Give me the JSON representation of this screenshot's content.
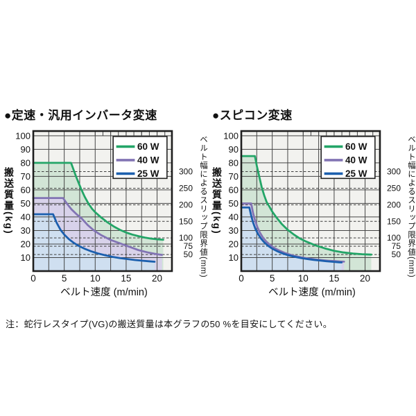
{
  "note": "注：蛇行レスタイプ(VG)の搬送質量は本グラフの50 %を目安にしてください。",
  "style": {
    "plot_bg": "#f2f2ef",
    "grid_color": "#454545",
    "dash_color": "#3d3d3d",
    "border_color": "#1e1e1e",
    "legend_bg": "#ffffff",
    "legend_border": "#222222"
  },
  "chart_data": [
    {
      "type": "area",
      "title": "●定速・汎用インバータ変速",
      "xlabel": "ベルト速度 (m/min)",
      "ylabel": "搬送質量(kg)",
      "y2label": "ベルト幅によるスリップ限界値(mm)",
      "xlim": [
        0,
        22.4
      ],
      "ylim": [
        0,
        103.5
      ],
      "x_grid_step": 2.5,
      "x_minor_tick_step": 1.25,
      "x_minor_tick_start": 10,
      "x_ticks": [
        0,
        5,
        10,
        15,
        20
      ],
      "y_ticks": [
        10,
        20,
        30,
        40,
        50,
        60,
        70,
        80,
        90,
        100
      ],
      "y2_ticks": [
        {
          "label": "300",
          "kg": 73.5
        },
        {
          "label": "250",
          "kg": 61.25
        },
        {
          "label": "200",
          "kg": 49
        },
        {
          "label": "150",
          "kg": 36.75
        },
        {
          "label": "100",
          "kg": 24.5
        },
        {
          "label": "75",
          "kg": 18.4
        },
        {
          "label": "50",
          "kg": 12.25
        }
      ],
      "legend": {
        "x0": 12.9,
        "x1": 21.6,
        "top_kg": 99.5,
        "row_step_kg": 10,
        "swatch_len": 3.0
      },
      "series": [
        {
          "name": "60 W",
          "color": "#23a567",
          "fill": "#d2e5d6",
          "points": [
            [
              0,
              80
            ],
            [
              6.1,
              80
            ],
            [
              6.5,
              75
            ],
            [
              6.9,
              70
            ],
            [
              7.3,
              65.5
            ],
            [
              7.7,
              61
            ],
            [
              8.3,
              55
            ],
            [
              8.9,
              50
            ],
            [
              9.5,
              46
            ],
            [
              10,
              43.5
            ],
            [
              11,
              39.5
            ],
            [
              12,
              36
            ],
            [
              13,
              33
            ],
            [
              14,
              30.5
            ],
            [
              15,
              28.5
            ],
            [
              16,
              27
            ],
            [
              17,
              25.8
            ],
            [
              18,
              24.8
            ],
            [
              19,
              24
            ],
            [
              20,
              23.5
            ],
            [
              21,
              23.2
            ]
          ]
        },
        {
          "name": "40 W",
          "color": "#8274b4",
          "fill": "#d8d2ea",
          "points": [
            [
              0,
              54
            ],
            [
              4.8,
              54
            ],
            [
              5.5,
              49.5
            ],
            [
              6.2,
              45.5
            ],
            [
              7,
              42
            ],
            [
              7.8,
              39
            ],
            [
              8.8,
              34
            ],
            [
              9.8,
              30
            ],
            [
              11,
              26.5
            ],
            [
              12.5,
              23
            ],
            [
              14,
              20.5
            ],
            [
              15.5,
              18
            ],
            [
              17,
              15.5
            ],
            [
              18.5,
              13.8
            ],
            [
              20,
              12.5
            ],
            [
              20.8,
              12
            ]
          ]
        },
        {
          "name": "25 W",
          "color": "#1b5fae",
          "fill": "#cfdff0",
          "points": [
            [
              0,
              42
            ],
            [
              3.2,
              42
            ],
            [
              3.8,
              35.5
            ],
            [
              4.4,
              30.5
            ],
            [
              5,
              27
            ],
            [
              5.7,
              23.8
            ],
            [
              6.5,
              21
            ],
            [
              7.4,
              18.5
            ],
            [
              8.3,
              16.5
            ],
            [
              9.3,
              14.7
            ],
            [
              10.4,
              13.1
            ],
            [
              11.6,
              11.7
            ],
            [
              12.8,
              10.5
            ],
            [
              14,
              9.6
            ],
            [
              15.2,
              8.9
            ],
            [
              16.4,
              8.2
            ],
            [
              17.6,
              7.7
            ],
            [
              18.8,
              7.2
            ],
            [
              19.6,
              6.9
            ]
          ]
        }
      ]
    },
    {
      "type": "area",
      "title": "●スピコン変速",
      "xlabel": "ベルト速度 (m/min)",
      "ylabel": "搬送質量(kg)",
      "y2label": "ベルト幅によるスリップ限界値(mm)",
      "xlim": [
        0,
        22.4
      ],
      "ylim": [
        0,
        103.5
      ],
      "x_grid_step": 2.5,
      "x_minor_tick_step": 1.25,
      "x_minor_tick_start": 10,
      "x_ticks": [
        0,
        5,
        10,
        15,
        20
      ],
      "y_ticks": [
        10,
        20,
        30,
        40,
        50,
        60,
        70,
        80,
        90,
        100
      ],
      "y2_ticks": [
        {
          "label": "300",
          "kg": 73.5
        },
        {
          "label": "250",
          "kg": 61.25
        },
        {
          "label": "200",
          "kg": 49
        },
        {
          "label": "150",
          "kg": 36.75
        },
        {
          "label": "100",
          "kg": 24.5
        },
        {
          "label": "75",
          "kg": 18.4
        },
        {
          "label": "50",
          "kg": 12.25
        }
      ],
      "legend": {
        "x0": 12.9,
        "x1": 21.6,
        "top_kg": 99.5,
        "row_step_kg": 10,
        "swatch_len": 3.0
      },
      "series": [
        {
          "name": "60 W",
          "color": "#23a567",
          "fill": "#d2e5d6",
          "points": [
            [
              0,
              85
            ],
            [
              2.2,
              85
            ],
            [
              2.5,
              78
            ],
            [
              2.9,
              70
            ],
            [
              3.3,
              62
            ],
            [
              3.7,
              56
            ],
            [
              4.1,
              51
            ],
            [
              4.5,
              48
            ],
            [
              5,
              44
            ],
            [
              5.7,
              39.5
            ],
            [
              6.5,
              35
            ],
            [
              7.5,
              30.5
            ],
            [
              8.5,
              27
            ],
            [
              9.5,
              24
            ],
            [
              10.5,
              21.8
            ],
            [
              12,
              19
            ],
            [
              13.5,
              16.8
            ],
            [
              15,
              15
            ],
            [
              16.5,
              13.8
            ],
            [
              18,
              13
            ],
            [
              19.5,
              12.5
            ],
            [
              21,
              12.2
            ]
          ]
        },
        {
          "name": "40 W",
          "color": "#8274b4",
          "fill": "#d8d2ea",
          "points": [
            [
              0,
              50
            ],
            [
              1.6,
              50
            ],
            [
              1.9,
              43
            ],
            [
              2.2,
              38
            ],
            [
              2.6,
              32.5
            ],
            [
              3,
              28.5
            ],
            [
              3.5,
              24.8
            ],
            [
              4,
              22
            ],
            [
              4.6,
              19.5
            ],
            [
              5.3,
              17.2
            ],
            [
              6,
              15.5
            ],
            [
              7,
              13.5
            ],
            [
              8,
              12
            ],
            [
              9,
              10.8
            ],
            [
              10,
              9.9
            ],
            [
              11,
              9.2
            ],
            [
              12,
              8.6
            ],
            [
              13,
              8.1
            ],
            [
              14,
              7.7
            ],
            [
              15,
              7.4
            ],
            [
              16,
              7.1
            ],
            [
              16.6,
              7
            ]
          ]
        },
        {
          "name": "25 W",
          "color": "#1b5fae",
          "fill": "#cfdff0",
          "points": [
            [
              0,
              47
            ],
            [
              1.3,
              47
            ],
            [
              1.6,
              41
            ],
            [
              1.9,
              36
            ],
            [
              2.3,
              31
            ],
            [
              2.7,
              27.5
            ],
            [
              3.2,
              24
            ],
            [
              3.7,
              21.3
            ],
            [
              4.3,
              18.8
            ],
            [
              5,
              16.6
            ],
            [
              5.8,
              14.7
            ],
            [
              6.7,
              13
            ],
            [
              7.7,
              11.6
            ],
            [
              8.7,
              10.5
            ],
            [
              9.7,
              9.6
            ],
            [
              10.7,
              8.9
            ],
            [
              11.7,
              8.3
            ],
            [
              12.7,
              7.8
            ],
            [
              13.7,
              7.3
            ],
            [
              14.7,
              6.9
            ],
            [
              15.8,
              6.5
            ],
            [
              16.2,
              6.4
            ]
          ]
        }
      ]
    }
  ]
}
